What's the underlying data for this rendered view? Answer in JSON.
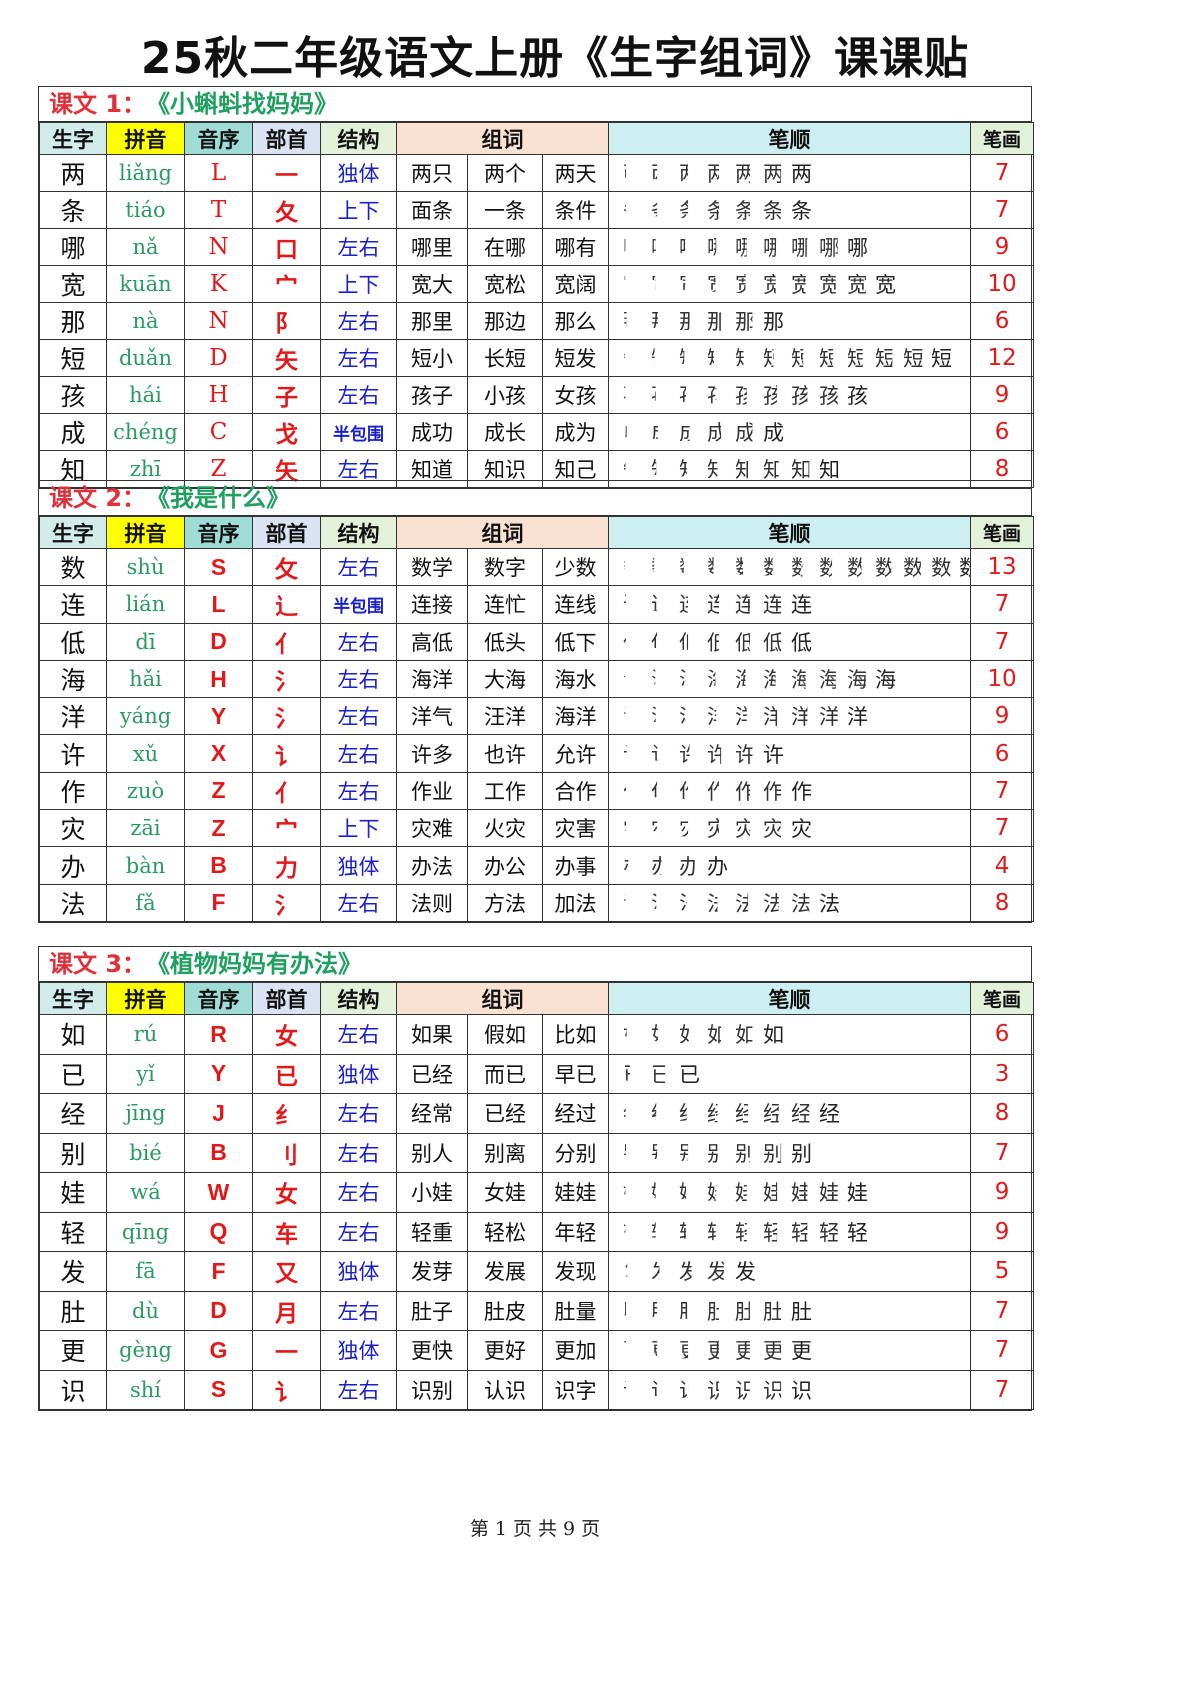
{
  "title": "25秋二年级语文上册《生字组词》课课贴",
  "headers": {
    "char": "生字",
    "pinyin": "拼音",
    "letter": "音序",
    "radical": "部首",
    "structure": "结构",
    "words": "组词",
    "strokes": "笔顺",
    "count": "笔画"
  },
  "sections": [
    {
      "label": "课文 1：",
      "name": "《小蝌蚪找妈妈》",
      "rows": [
        {
          "char": "两",
          "pinyin": "liǎng",
          "letter": "L",
          "radical": "一",
          "structure": "独体",
          "words": [
            "两只",
            "两个",
            "两天"
          ],
          "count": "7"
        },
        {
          "char": "条",
          "pinyin": "tiáo",
          "letter": "T",
          "radical": "夂",
          "structure": "上下",
          "words": [
            "面条",
            "一条",
            "条件"
          ],
          "count": "7"
        },
        {
          "char": "哪",
          "pinyin": "nǎ",
          "letter": "N",
          "radical": "口",
          "structure": "左右",
          "words": [
            "哪里",
            "在哪",
            "哪有"
          ],
          "count": "9"
        },
        {
          "char": "宽",
          "pinyin": "kuān",
          "letter": "K",
          "radical": "宀",
          "structure": "上下",
          "words": [
            "宽大",
            "宽松",
            "宽阔"
          ],
          "count": "10"
        },
        {
          "char": "那",
          "pinyin": "nà",
          "letter": "N",
          "radical": "阝",
          "structure": "左右",
          "words": [
            "那里",
            "那边",
            "那么"
          ],
          "count": "6"
        },
        {
          "char": "短",
          "pinyin": "duǎn",
          "letter": "D",
          "radical": "矢",
          "structure": "左右",
          "words": [
            "短小",
            "长短",
            "短发"
          ],
          "count": "12"
        },
        {
          "char": "孩",
          "pinyin": "hái",
          "letter": "H",
          "radical": "子",
          "structure": "左右",
          "words": [
            "孩子",
            "小孩",
            "女孩"
          ],
          "count": "9"
        },
        {
          "char": "成",
          "pinyin": "chéng",
          "letter": "C",
          "radical": "戈",
          "structure": "半包围",
          "words": [
            "成功",
            "成长",
            "成为"
          ],
          "count": "6"
        },
        {
          "char": "知",
          "pinyin": "zhī",
          "letter": "Z",
          "radical": "矢",
          "structure": "左右",
          "words": [
            "知道",
            "知识",
            "知己"
          ],
          "count": "8"
        }
      ]
    },
    {
      "label": "课文 2：",
      "name": "《我是什么》",
      "rows": [
        {
          "char": "数",
          "pinyin": "shù",
          "letter": "S",
          "radical": "攵",
          "structure": "左右",
          "words": [
            "数学",
            "数字",
            "少数"
          ],
          "count": "13"
        },
        {
          "char": "连",
          "pinyin": "lián",
          "letter": "L",
          "radical": "辶",
          "structure": "半包围",
          "words": [
            "连接",
            "连忙",
            "连线"
          ],
          "count": "7"
        },
        {
          "char": "低",
          "pinyin": "dī",
          "letter": "D",
          "radical": "亻",
          "structure": "左右",
          "words": [
            "高低",
            "低头",
            "低下"
          ],
          "count": "7"
        },
        {
          "char": "海",
          "pinyin": "hǎi",
          "letter": "H",
          "radical": "氵",
          "structure": "左右",
          "words": [
            "海洋",
            "大海",
            "海水"
          ],
          "count": "10"
        },
        {
          "char": "洋",
          "pinyin": "yáng",
          "letter": "Y",
          "radical": "氵",
          "structure": "左右",
          "words": [
            "洋气",
            "汪洋",
            "海洋"
          ],
          "count": "9"
        },
        {
          "char": "许",
          "pinyin": "xǔ",
          "letter": "X",
          "radical": "讠",
          "structure": "左右",
          "words": [
            "许多",
            "也许",
            "允许"
          ],
          "count": "6"
        },
        {
          "char": "作",
          "pinyin": "zuò",
          "letter": "Z",
          "radical": "亻",
          "structure": "左右",
          "words": [
            "作业",
            "工作",
            "合作"
          ],
          "count": "7"
        },
        {
          "char": "灾",
          "pinyin": "zāi",
          "letter": "Z",
          "radical": "宀",
          "structure": "上下",
          "words": [
            "灾难",
            "火灾",
            "灾害"
          ],
          "count": "7"
        },
        {
          "char": "办",
          "pinyin": "bàn",
          "letter": "B",
          "radical": "力",
          "structure": "独体",
          "words": [
            "办法",
            "办公",
            "办事"
          ],
          "count": "4"
        },
        {
          "char": "法",
          "pinyin": "fǎ",
          "letter": "F",
          "radical": "氵",
          "structure": "左右",
          "words": [
            "法则",
            "方法",
            "加法"
          ],
          "count": "8"
        }
      ]
    },
    {
      "label": "课文 3：",
      "name": "《植物妈妈有办法》",
      "rows": [
        {
          "char": "如",
          "pinyin": "rú",
          "letter": "R",
          "radical": "女",
          "structure": "左右",
          "words": [
            "如果",
            "假如",
            "比如"
          ],
          "count": "6"
        },
        {
          "char": "已",
          "pinyin": "yǐ",
          "letter": "Y",
          "radical": "已",
          "structure": "独体",
          "words": [
            "已经",
            "而已",
            "早已"
          ],
          "count": "3"
        },
        {
          "char": "经",
          "pinyin": "jīng",
          "letter": "J",
          "radical": "纟",
          "structure": "左右",
          "words": [
            "经常",
            "已经",
            "经过"
          ],
          "count": "8"
        },
        {
          "char": "别",
          "pinyin": "bié",
          "letter": "B",
          "radical": "刂",
          "structure": "左右",
          "words": [
            "别人",
            "别离",
            "分别"
          ],
          "count": "7"
        },
        {
          "char": "娃",
          "pinyin": "wá",
          "letter": "W",
          "radical": "女",
          "structure": "左右",
          "words": [
            "小娃",
            "女娃",
            "娃娃"
          ],
          "count": "9"
        },
        {
          "char": "轻",
          "pinyin": "qīng",
          "letter": "Q",
          "radical": "车",
          "structure": "左右",
          "words": [
            "轻重",
            "轻松",
            "年轻"
          ],
          "count": "9"
        },
        {
          "char": "发",
          "pinyin": "fā",
          "letter": "F",
          "radical": "又",
          "structure": "独体",
          "words": [
            "发芽",
            "发展",
            "发现"
          ],
          "count": "5"
        },
        {
          "char": "肚",
          "pinyin": "dù",
          "letter": "D",
          "radical": "月",
          "structure": "左右",
          "words": [
            "肚子",
            "肚皮",
            "肚量"
          ],
          "count": "7"
        },
        {
          "char": "更",
          "pinyin": "gèng",
          "letter": "G",
          "radical": "一",
          "structure": "独体",
          "words": [
            "更快",
            "更好",
            "更加"
          ],
          "count": "7"
        },
        {
          "char": "识",
          "pinyin": "shí",
          "letter": "S",
          "radical": "讠",
          "structure": "左右",
          "words": [
            "识别",
            "认识",
            "识字"
          ],
          "count": "7"
        }
      ]
    }
  ],
  "footer": "第 1 页 共 9 页"
}
